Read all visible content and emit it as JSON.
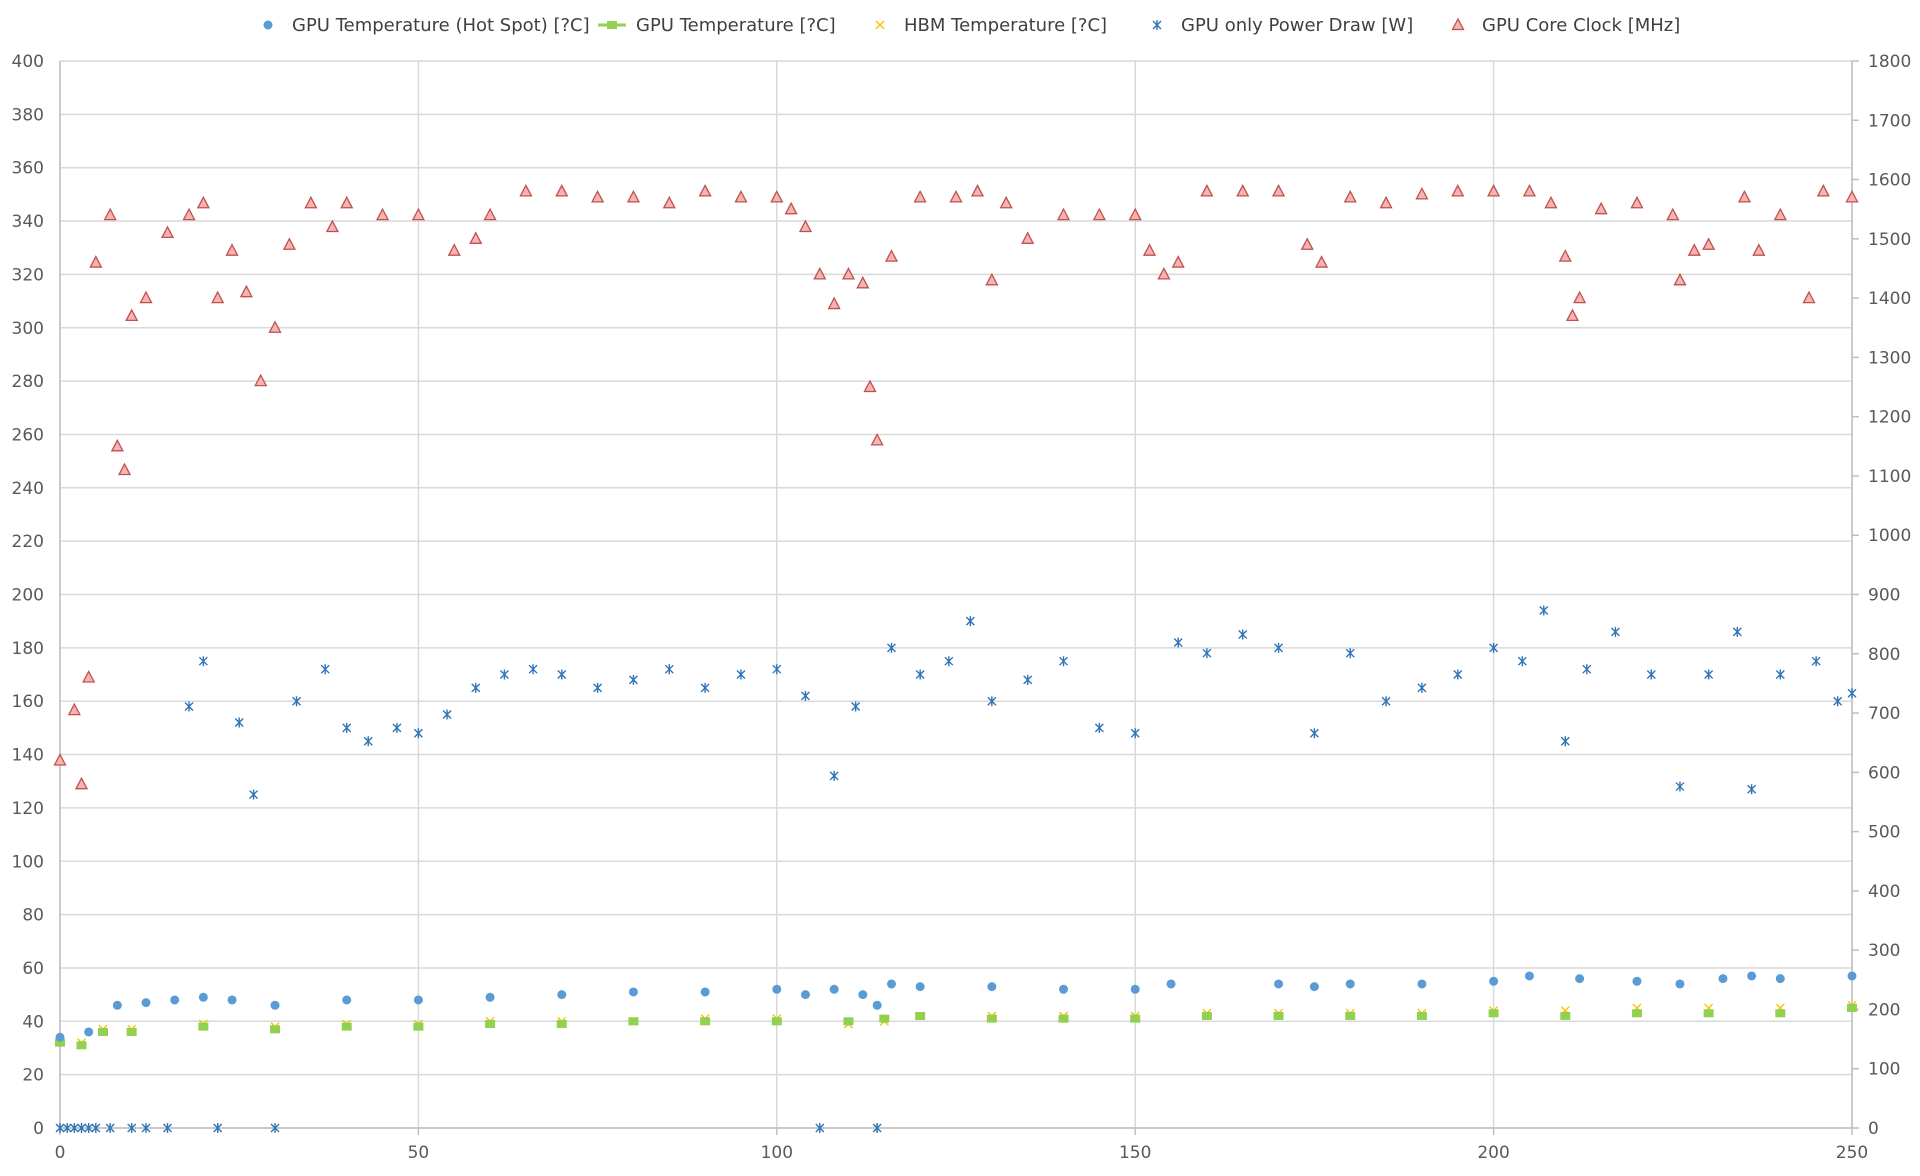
{
  "chart_data": {
    "type": "scatter",
    "title": "",
    "xlabel": "",
    "ylabel": "",
    "y2label": "",
    "xlim": [
      0,
      250
    ],
    "ylim": [
      0,
      400
    ],
    "y2lim": [
      0,
      1800
    ],
    "x_ticks": [
      "0",
      "50",
      "100",
      "150",
      "200",
      "250"
    ],
    "y_ticks": [
      "0",
      "20",
      "40",
      "60",
      "80",
      "100",
      "120",
      "140",
      "160",
      "180",
      "200",
      "220",
      "240",
      "260",
      "280",
      "300",
      "320",
      "340",
      "360",
      "380",
      "400"
    ],
    "y2_ticks": [
      "0",
      "100",
      "200",
      "300",
      "400",
      "500",
      "600",
      "700",
      "800",
      "900",
      "1000",
      "1100",
      "1200",
      "1300",
      "1400",
      "1500",
      "1600",
      "1700",
      "1800"
    ],
    "grid": true,
    "legend_position": "top",
    "series": [
      {
        "name": "GPU Temperature (Hot Spot) [?C]",
        "axis": "left",
        "marker": "circle",
        "color": "#5B9BD5",
        "x": [
          0,
          4,
          8,
          12,
          16,
          20,
          24,
          30,
          40,
          50,
          60,
          70,
          80,
          90,
          100,
          104,
          108,
          112,
          114,
          116,
          120,
          130,
          140,
          150,
          155,
          170,
          175,
          180,
          190,
          200,
          205,
          212,
          220,
          226,
          232,
          236,
          240,
          250
        ],
        "y": [
          34,
          36,
          46,
          47,
          48,
          49,
          48,
          46,
          48,
          48,
          49,
          50,
          51,
          51,
          52,
          50,
          52,
          50,
          46,
          54,
          53,
          53,
          52,
          52,
          54,
          54,
          53,
          54,
          54,
          55,
          57,
          56,
          55,
          54,
          56,
          57,
          56,
          57
        ]
      },
      {
        "name": "GPU Temperature [?C]",
        "axis": "left",
        "marker": "square",
        "color": "#92D050",
        "x": [
          0,
          3,
          6,
          10,
          20,
          30,
          40,
          50,
          60,
          70,
          80,
          90,
          100,
          110,
          115,
          120,
          130,
          140,
          150,
          160,
          170,
          180,
          190,
          200,
          210,
          220,
          230,
          240,
          250
        ],
        "y": [
          32,
          31,
          36,
          36,
          38,
          37,
          38,
          38,
          39,
          39,
          40,
          40,
          40,
          40,
          41,
          42,
          41,
          41,
          41,
          42,
          42,
          42,
          42,
          43,
          42,
          43,
          43,
          43,
          45
        ]
      },
      {
        "name": "HBM Temperature [?C]",
        "axis": "left",
        "marker": "x",
        "color": "#FFC000",
        "x": [
          0,
          3,
          6,
          10,
          20,
          30,
          40,
          50,
          60,
          70,
          80,
          90,
          100,
          110,
          115,
          120,
          130,
          140,
          150,
          160,
          170,
          180,
          190,
          200,
          210,
          220,
          230,
          240,
          250
        ],
        "y": [
          33,
          32,
          37,
          37,
          39,
          38,
          39,
          39,
          40,
          40,
          40,
          41,
          41,
          39,
          40,
          42,
          42,
          42,
          42,
          43,
          43,
          43,
          43,
          44,
          44,
          45,
          45,
          45,
          46
        ]
      },
      {
        "name": "GPU only Power Draw [W]",
        "axis": "left",
        "marker": "star",
        "color": "#2E75B6",
        "x": [
          0,
          1,
          2,
          3,
          4,
          5,
          7,
          10,
          12,
          15,
          18,
          20,
          22,
          25,
          27,
          30,
          33,
          37,
          40,
          43,
          47,
          50,
          54,
          58,
          62,
          66,
          70,
          75,
          80,
          85,
          90,
          95,
          100,
          104,
          106,
          108,
          111,
          114,
          116,
          120,
          124,
          127,
          130,
          135,
          140,
          145,
          150,
          156,
          160,
          165,
          170,
          175,
          180,
          185,
          190,
          195,
          200,
          204,
          207,
          210,
          213,
          217,
          222,
          226,
          230,
          234,
          236,
          240,
          245,
          248,
          250
        ],
        "y": [
          0,
          0,
          0,
          0,
          0,
          0,
          0,
          0,
          0,
          0,
          158,
          175,
          0,
          152,
          125,
          0,
          160,
          172,
          150,
          145,
          150,
          148,
          155,
          165,
          170,
          172,
          170,
          165,
          168,
          172,
          165,
          170,
          172,
          162,
          0,
          132,
          158,
          0,
          180,
          170,
          175,
          190,
          160,
          168,
          175,
          150,
          148,
          182,
          178,
          185,
          180,
          148,
          178,
          160,
          165,
          170,
          180,
          175,
          194,
          145,
          172,
          186,
          170,
          128,
          170,
          186,
          127,
          170,
          175,
          160,
          163
        ]
      },
      {
        "name": "GPU Core Clock [MHz]",
        "axis": "right",
        "marker": "triangle",
        "color": "#E06666",
        "x": [
          0,
          2,
          3,
          4,
          5,
          7,
          8,
          9,
          10,
          12,
          15,
          18,
          20,
          22,
          24,
          26,
          28,
          30,
          32,
          35,
          38,
          40,
          45,
          50,
          55,
          58,
          60,
          65,
          70,
          75,
          80,
          85,
          90,
          95,
          100,
          102,
          104,
          106,
          108,
          110,
          112,
          113,
          114,
          116,
          120,
          125,
          128,
          130,
          132,
          135,
          140,
          145,
          150,
          152,
          154,
          156,
          160,
          165,
          170,
          174,
          176,
          180,
          185,
          190,
          195,
          200,
          205,
          208,
          210,
          211,
          212,
          215,
          220,
          225,
          226,
          228,
          230,
          235,
          237,
          240,
          244,
          246,
          250
        ],
        "y": [
          620,
          705,
          580,
          760,
          1460,
          1540,
          1150,
          1110,
          1370,
          1400,
          1510,
          1540,
          1560,
          1400,
          1480,
          1410,
          1260,
          1350,
          1490,
          1560,
          1520,
          1560,
          1540,
          1540,
          1480,
          1500,
          1540,
          1580,
          1580,
          1570,
          1570,
          1560,
          1580,
          1570,
          1570,
          1550,
          1520,
          1440,
          1390,
          1440,
          1425,
          1250,
          1160,
          1470,
          1570,
          1570,
          1580,
          1430,
          1560,
          1500,
          1540,
          1540,
          1540,
          1480,
          1440,
          1460,
          1580,
          1580,
          1580,
          1490,
          1460,
          1570,
          1560,
          1575,
          1580,
          1580,
          1580,
          1560,
          1470,
          1370,
          1400,
          1550,
          1560,
          1540,
          1430,
          1480,
          1490,
          1570,
          1480,
          1540,
          1400,
          1580,
          1570
        ]
      }
    ]
  }
}
